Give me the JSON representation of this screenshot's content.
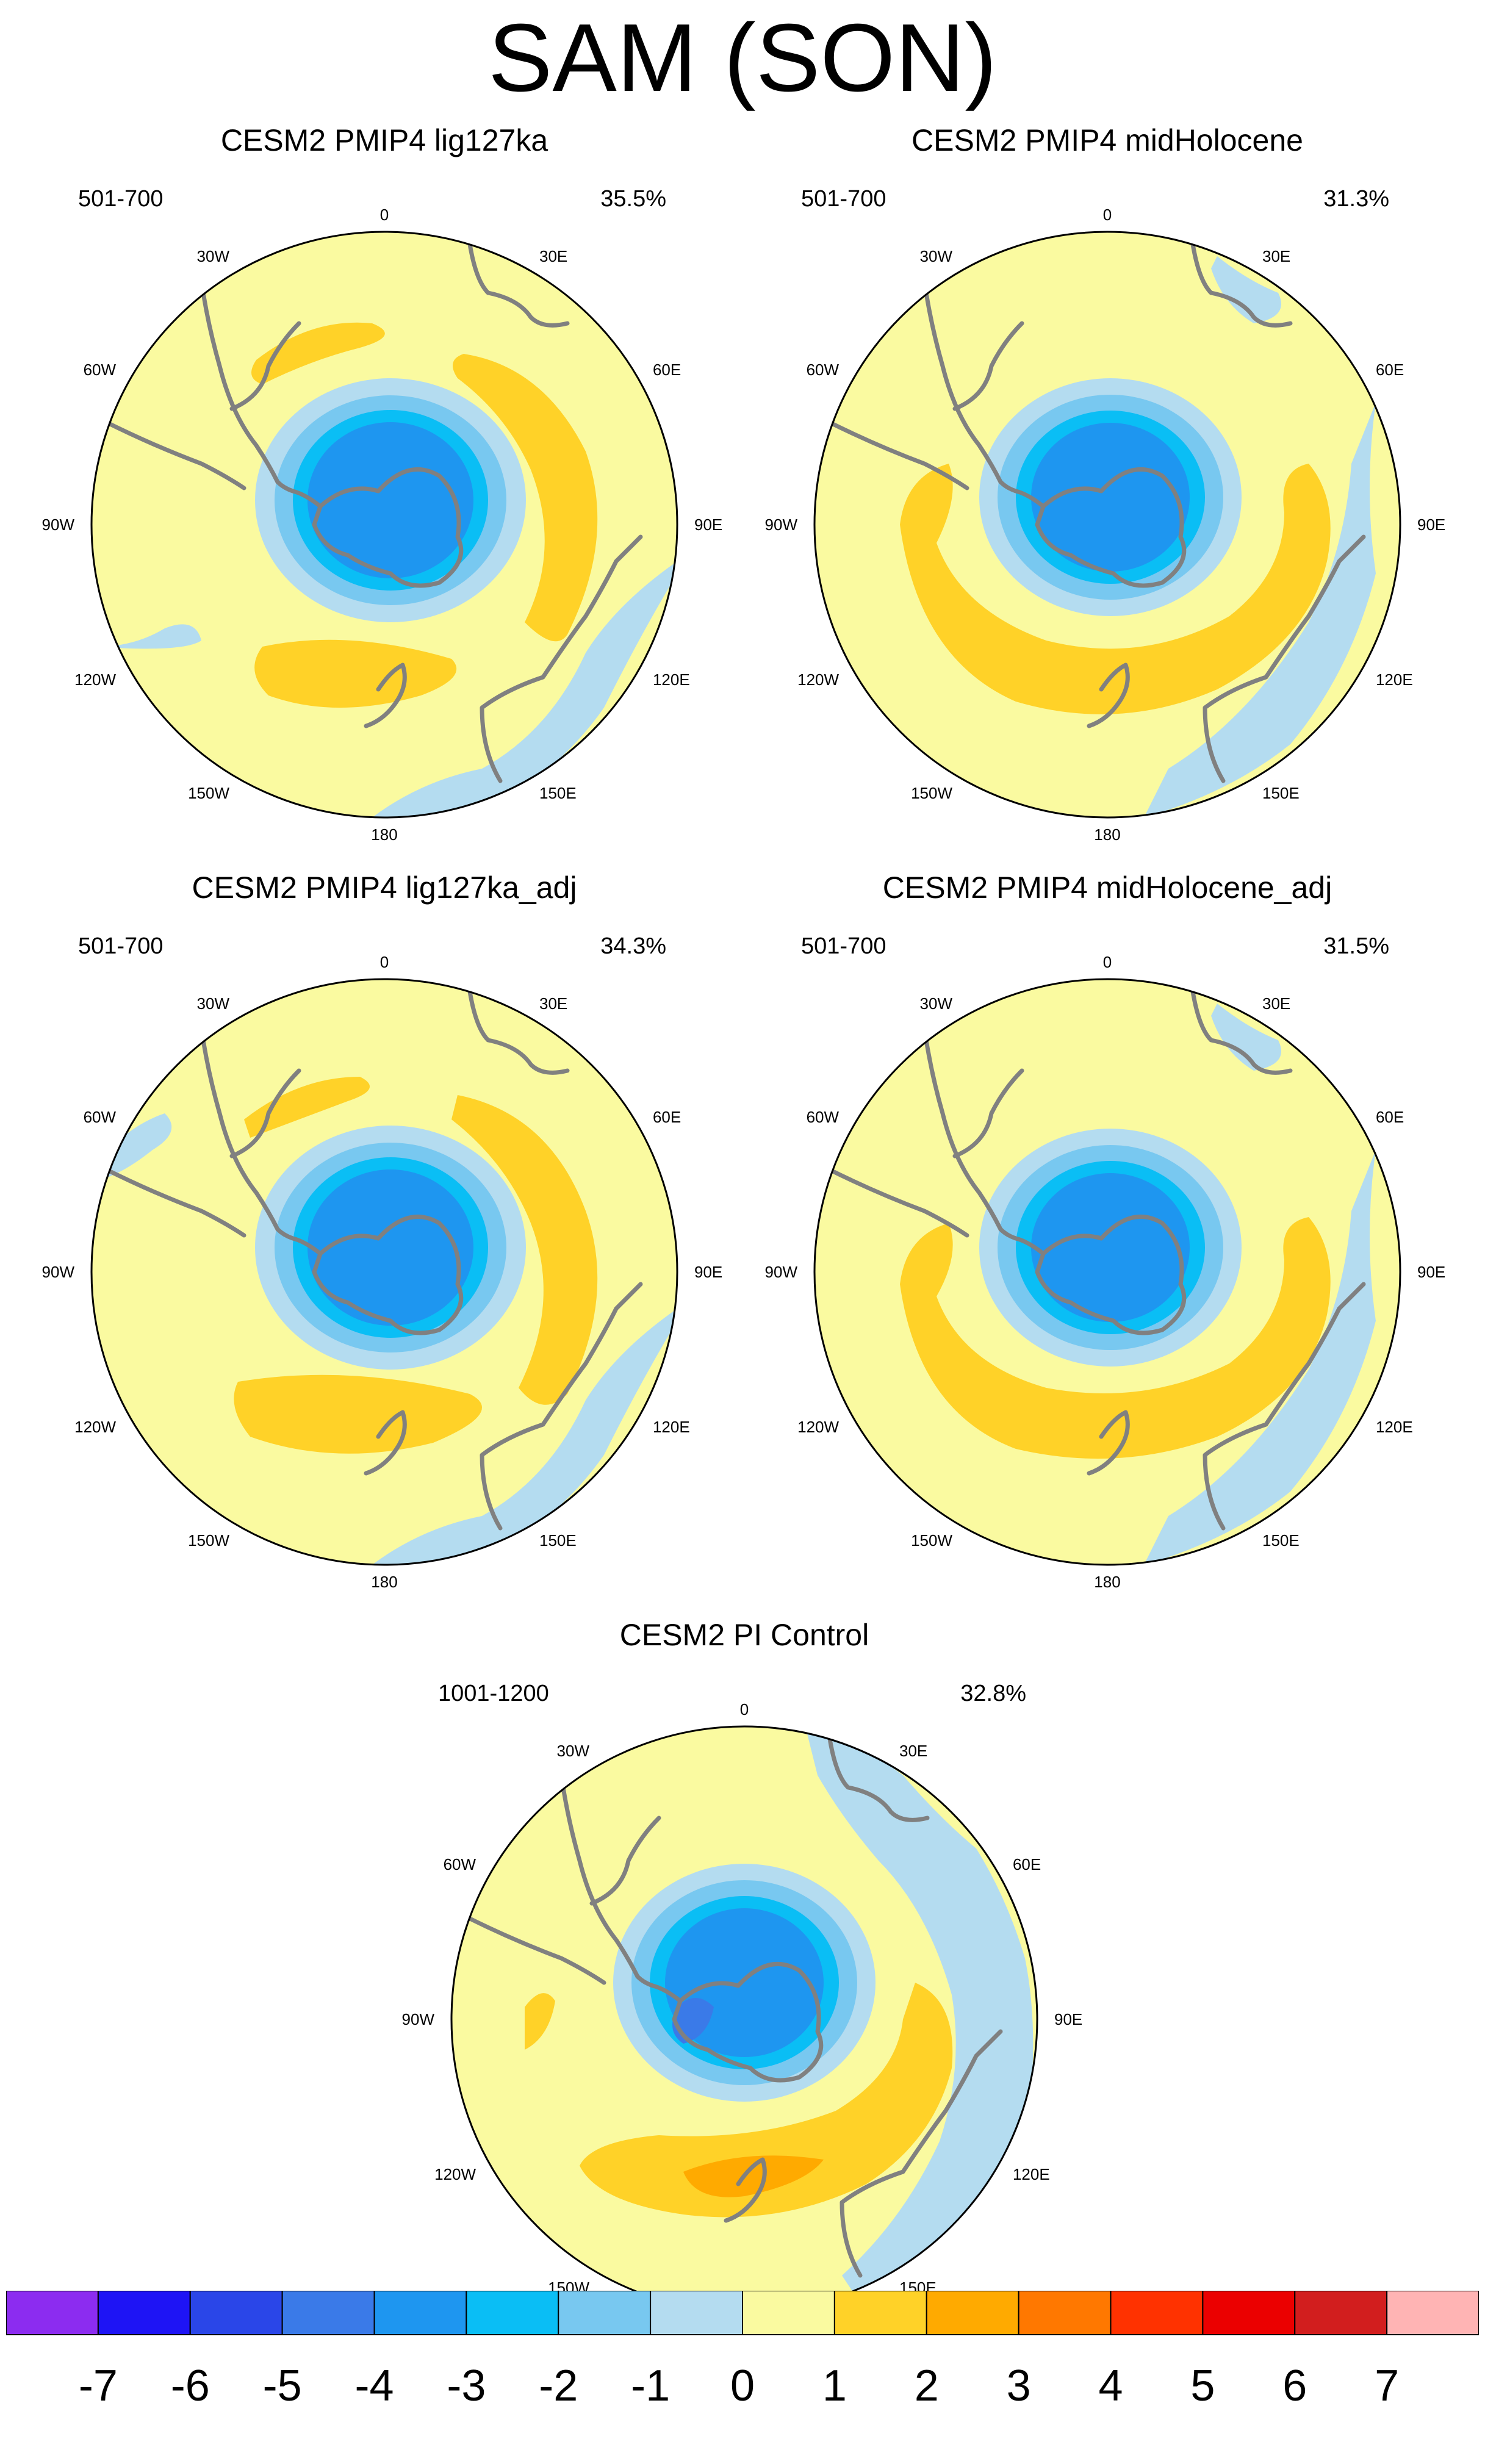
{
  "figure": {
    "title": "SAM (SON)"
  },
  "panels": [
    {
      "title": "CESM2 PMIP4 lig127ka",
      "years": "501-700",
      "variance": "35.5%"
    },
    {
      "title": "CESM2 PMIP4 midHolocene",
      "years": "501-700",
      "variance": "31.3%"
    },
    {
      "title": "CESM2 PMIP4 lig127ka_adj",
      "years": "501-700",
      "variance": "34.3%"
    },
    {
      "title": "CESM2 PMIP4 midHolocene_adj",
      "years": "501-700",
      "variance": "31.5%"
    },
    {
      "title": "CESM2 PI Control",
      "years": "1001-1200",
      "variance": "32.8%"
    }
  ],
  "longitude_labels": [
    "0",
    "30E",
    "60E",
    "90E",
    "120E",
    "150E",
    "180",
    "150W",
    "120W",
    "90W",
    "60W",
    "30W"
  ],
  "colorbar": {
    "ticks": [
      "-7",
      "-6",
      "-5",
      "-4",
      "-3",
      "-2",
      "-1",
      "0",
      "1",
      "2",
      "3",
      "4",
      "5",
      "6",
      "7"
    ],
    "colors": [
      "#8c2cf0",
      "#1e14f5",
      "#2a46e8",
      "#3a7ae8",
      "#1e96f0",
      "#0abef5",
      "#78c8f0",
      "#b4dcf0",
      "#fafaa0",
      "#ffd228",
      "#ffaa00",
      "#ff7800",
      "#ff3200",
      "#eb0000",
      "#d21e1e",
      "#ffb4b4"
    ]
  },
  "colors": {
    "continent_outline": "#808080",
    "background_field": "#fafaa0"
  }
}
